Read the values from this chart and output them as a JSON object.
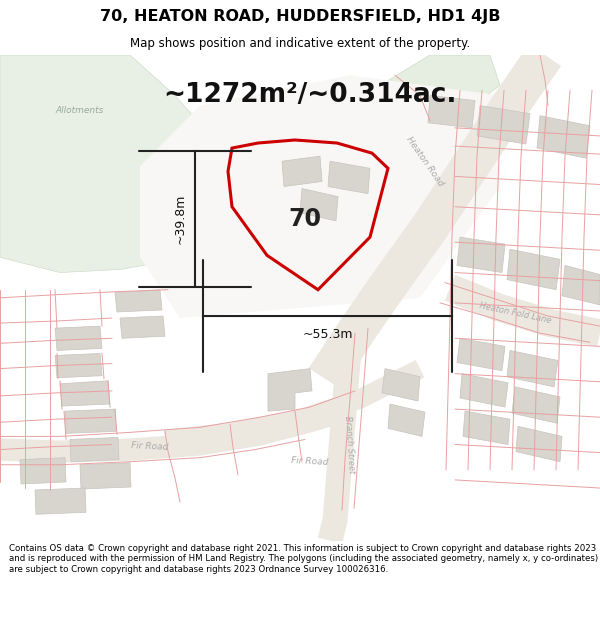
{
  "title": "70, HEATON ROAD, HUDDERSFIELD, HD1 4JB",
  "subtitle": "Map shows position and indicative extent of the property.",
  "footer": "Contains OS data © Crown copyright and database right 2021. This information is subject to Crown copyright and database rights 2023 and is reproduced with the permission of HM Land Registry. The polygons (including the associated geometry, namely x, y co-ordinates) are subject to Crown copyright and database rights 2023 Ordnance Survey 100026316.",
  "area_text": "~1272m²/~0.314ac.",
  "width_label": "~55.3m",
  "height_label": "~39.8m",
  "property_number": "70",
  "bg_color": "#ffffff",
  "map_bg": "#f7f5f2",
  "allotment_color": "#e8f0e6",
  "road_color_fill": "#f0ece6",
  "building_color": "#d8d4ce",
  "building_edge": "#c8c4be",
  "boundary_color": "#cc0000",
  "boundary_lw": 2.2,
  "cad_line_color": "#e8a0a0",
  "cad_line_lw": 0.7,
  "dim_line_color": "#222222",
  "title_fontsize": 11.5,
  "subtitle_fontsize": 8.5,
  "footer_fontsize": 6.2,
  "area_fontsize": 19,
  "label_fontsize": 9,
  "property_fontsize": 17,
  "street_label_color": "#aaaaaa",
  "street_label_size": 6.5
}
